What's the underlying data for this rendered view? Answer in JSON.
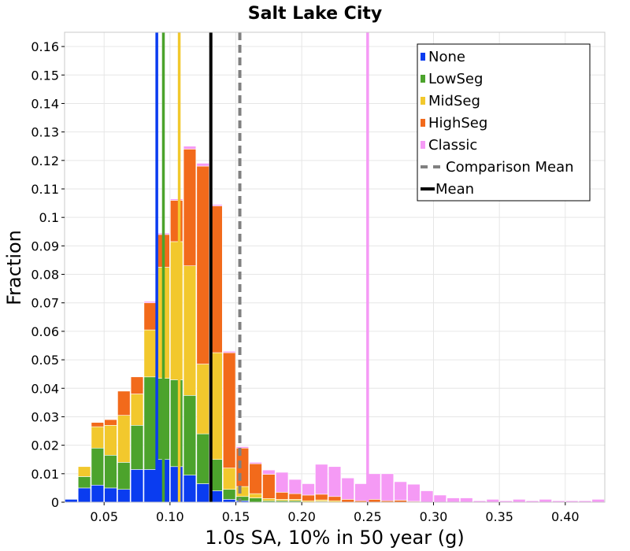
{
  "chart_data": {
    "type": "bar",
    "stacked": true,
    "title": "Salt Lake City",
    "xlabel": "1.0s SA, 10% in 50 year (g)",
    "ylabel": "Fraction",
    "xlim": [
      0.02,
      0.43
    ],
    "ylim": [
      0,
      0.165
    ],
    "bin_width": 0.01,
    "x": [
      0.025,
      0.035,
      0.045,
      0.055,
      0.065,
      0.075,
      0.085,
      0.095,
      0.105,
      0.115,
      0.125,
      0.135,
      0.145,
      0.155,
      0.165,
      0.175,
      0.185,
      0.195,
      0.205,
      0.215,
      0.225,
      0.235,
      0.245,
      0.255,
      0.265,
      0.275,
      0.285,
      0.295,
      0.305,
      0.315,
      0.325,
      0.335,
      0.345,
      0.355,
      0.365,
      0.375,
      0.385,
      0.395,
      0.405,
      0.415,
      0.425
    ],
    "series": [
      {
        "name": "None",
        "color": "#0a3cf0",
        "values": [
          0.001,
          0.005,
          0.006,
          0.005,
          0.0045,
          0.0115,
          0.0115,
          0.015,
          0.0125,
          0.0095,
          0.0065,
          0.004,
          0.001,
          0.0005,
          0,
          0,
          0,
          0,
          0,
          0,
          0,
          0,
          0,
          0,
          0,
          0,
          0,
          0,
          0,
          0,
          0,
          0,
          0,
          0,
          0,
          0,
          0,
          0,
          0,
          0,
          0
        ]
      },
      {
        "name": "LowSeg",
        "color": "#4ca32c",
        "values": [
          0,
          0.004,
          0.013,
          0.0115,
          0.0095,
          0.0155,
          0.0325,
          0.0285,
          0.0305,
          0.028,
          0.0175,
          0.011,
          0.0035,
          0.0015,
          0.0015,
          0.0005,
          0.0005,
          0.0005,
          0,
          0.0003,
          0,
          0,
          0,
          0,
          0,
          0,
          0,
          0,
          0,
          0,
          0,
          0,
          0,
          0,
          0,
          0,
          0,
          0,
          0,
          0,
          0
        ]
      },
      {
        "name": "MidSeg",
        "color": "#f2c82d",
        "values": [
          0,
          0.0035,
          0.0075,
          0.0105,
          0.0165,
          0.011,
          0.0165,
          0.039,
          0.0485,
          0.0455,
          0.0245,
          0.0375,
          0.0075,
          0.0035,
          0.0015,
          0.0008,
          0.0005,
          0.0005,
          0.0005,
          0.0005,
          0.0005,
          0,
          0,
          0,
          0,
          0,
          0,
          0,
          0,
          0,
          0,
          0,
          0,
          0,
          0,
          0,
          0,
          0,
          0,
          0,
          0
        ]
      },
      {
        "name": "HighSeg",
        "color": "#f26a1b",
        "values": [
          0,
          0,
          0.0015,
          0.002,
          0.0085,
          0.006,
          0.0095,
          0.0115,
          0.0145,
          0.041,
          0.0695,
          0.0515,
          0.0405,
          0.0135,
          0.0105,
          0.0085,
          0.0025,
          0.002,
          0.002,
          0.002,
          0.0015,
          0.001,
          0.0005,
          0.001,
          0.0005,
          0.0007,
          0.0003,
          0,
          0,
          0,
          0,
          0,
          0,
          0,
          0,
          0,
          0,
          0,
          0,
          0,
          0
        ]
      },
      {
        "name": "Classic",
        "color": "#f59af5",
        "values": [
          0,
          0,
          0,
          0,
          0,
          0,
          0.0005,
          0.0005,
          0.0005,
          0.001,
          0.001,
          0.0005,
          0.0005,
          0.0005,
          0.0005,
          0.0015,
          0.007,
          0.005,
          0.004,
          0.0105,
          0.0105,
          0.0075,
          0.006,
          0.009,
          0.0095,
          0.0065,
          0.006,
          0.004,
          0.0025,
          0.0015,
          0.0015,
          0.0005,
          0.001,
          0.0005,
          0.001,
          0.0005,
          0.001,
          0.0005,
          0.0005,
          0.0005,
          0.001
        ]
      }
    ],
    "mean_lines": [
      {
        "series": "None",
        "x": 0.09,
        "color": "#0a3cf0",
        "style": "solid"
      },
      {
        "series": "LowSeg",
        "x": 0.095,
        "color": "#4ca32c",
        "style": "solid"
      },
      {
        "series": "MidSeg",
        "x": 0.107,
        "color": "#f2c82d",
        "style": "solid"
      },
      {
        "series": "Classic",
        "x": 0.25,
        "color": "#f59af5",
        "style": "solid"
      },
      {
        "series": "Mean",
        "x": 0.131,
        "color": "#000000",
        "style": "solid"
      },
      {
        "series": "Comparison Mean",
        "x": 0.153,
        "color": "#808080",
        "style": "dashed"
      }
    ],
    "legend": {
      "position": "top-right",
      "entries": [
        {
          "label": "None",
          "color": "#0a3cf0",
          "marker": "box"
        },
        {
          "label": "LowSeg",
          "color": "#4ca32c",
          "marker": "box"
        },
        {
          "label": "MidSeg",
          "color": "#f2c82d",
          "marker": "box"
        },
        {
          "label": "HighSeg",
          "color": "#f26a1b",
          "marker": "box"
        },
        {
          "label": "Classic",
          "color": "#f59af5",
          "marker": "box"
        },
        {
          "label": "Comparison Mean",
          "color": "#808080",
          "marker": "dash"
        },
        {
          "label": "Mean",
          "color": "#000000",
          "marker": "line"
        }
      ]
    },
    "x_ticks": [
      0.05,
      0.1,
      0.15,
      0.2,
      0.25,
      0.3,
      0.35,
      0.4
    ],
    "x_tick_labels": [
      "0.05",
      "0.10",
      "0.15",
      "0.20",
      "0.25",
      "0.30",
      "0.35",
      "0.40"
    ],
    "y_ticks": [
      0,
      0.01,
      0.02,
      0.03,
      0.04,
      0.05,
      0.06,
      0.07,
      0.08,
      0.09,
      0.1,
      0.11,
      0.12,
      0.13,
      0.14,
      0.15,
      0.16
    ],
    "y_tick_labels": [
      "0",
      "0.01",
      "0.02",
      "0.03",
      "0.04",
      "0.05",
      "0.06",
      "0.07",
      "0.08",
      "0.09",
      "0.1",
      "0.11",
      "0.12",
      "0.13",
      "0.14",
      "0.15",
      "0.16"
    ],
    "grid": true
  }
}
